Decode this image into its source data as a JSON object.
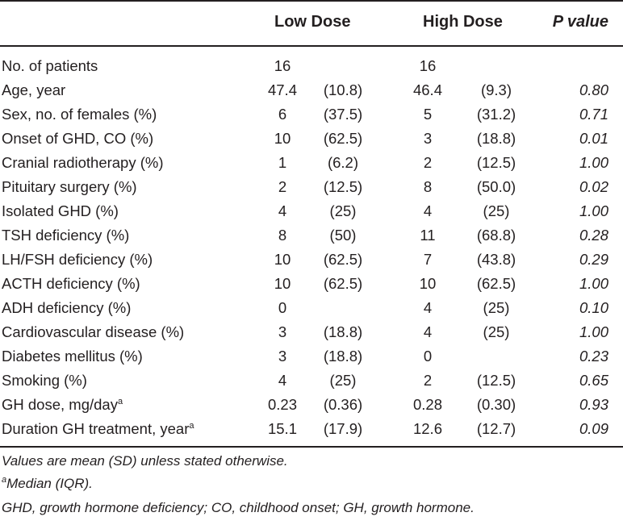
{
  "header": {
    "low_dose": "Low Dose",
    "high_dose": "High Dose",
    "p_value": "P value"
  },
  "rows": [
    {
      "label": "No. of patients",
      "sup": "",
      "low_val": "16",
      "low_sd": "",
      "high_val": "16",
      "high_sd": "",
      "p": ""
    },
    {
      "label": "Age, year",
      "sup": "",
      "low_val": "47.4",
      "low_sd": "(10.8)",
      "high_val": "46.4",
      "high_sd": "(9.3)",
      "p": "0.80"
    },
    {
      "label": "Sex, no. of females (%)",
      "sup": "",
      "low_val": "6",
      "low_sd": "(37.5)",
      "high_val": "5",
      "high_sd": "(31.2)",
      "p": "0.71"
    },
    {
      "label": "Onset of GHD, CO (%)",
      "sup": "",
      "low_val": "10",
      "low_sd": "(62.5)",
      "high_val": "3",
      "high_sd": "(18.8)",
      "p": "0.01"
    },
    {
      "label": "Cranial radiotherapy (%)",
      "sup": "",
      "low_val": "1",
      "low_sd": "(6.2)",
      "high_val": "2",
      "high_sd": "(12.5)",
      "p": "1.00"
    },
    {
      "label": "Pituitary surgery (%)",
      "sup": "",
      "low_val": "2",
      "low_sd": "(12.5)",
      "high_val": "8",
      "high_sd": "(50.0)",
      "p": "0.02"
    },
    {
      "label": "Isolated GHD (%)",
      "sup": "",
      "low_val": "4",
      "low_sd": "(25)",
      "high_val": "4",
      "high_sd": "(25)",
      "p": "1.00"
    },
    {
      "label": "TSH deficiency (%)",
      "sup": "",
      "low_val": "8",
      "low_sd": "(50)",
      "high_val": "11",
      "high_sd": "(68.8)",
      "p": "0.28"
    },
    {
      "label": "LH/FSH deficiency (%)",
      "sup": "",
      "low_val": "10",
      "low_sd": "(62.5)",
      "high_val": "7",
      "high_sd": "(43.8)",
      "p": "0.29"
    },
    {
      "label": "ACTH deficiency (%)",
      "sup": "",
      "low_val": "10",
      "low_sd": "(62.5)",
      "high_val": "10",
      "high_sd": "(62.5)",
      "p": "1.00"
    },
    {
      "label": "ADH deficiency (%)",
      "sup": "",
      "low_val": "0",
      "low_sd": "",
      "high_val": "4",
      "high_sd": "(25)",
      "p": "0.10"
    },
    {
      "label": "Cardiovascular disease (%)",
      "sup": "",
      "low_val": "3",
      "low_sd": "(18.8)",
      "high_val": "4",
      "high_sd": "(25)",
      "p": "1.00"
    },
    {
      "label": "Diabetes mellitus (%)",
      "sup": "",
      "low_val": "3",
      "low_sd": "(18.8)",
      "high_val": "0",
      "high_sd": "",
      "p": "0.23"
    },
    {
      "label": "Smoking (%)",
      "sup": "",
      "low_val": "4",
      "low_sd": "(25)",
      "high_val": "2",
      "high_sd": "(12.5)",
      "p": "0.65"
    },
    {
      "label": "GH dose, mg/day",
      "sup": "a",
      "low_val": "0.23",
      "low_sd": "(0.36)",
      "high_val": "0.28",
      "high_sd": "(0.30)",
      "p": "0.93"
    },
    {
      "label": "Duration GH treatment, year",
      "sup": "a",
      "low_val": "15.1",
      "low_sd": "(17.9)",
      "high_val": "12.6",
      "high_sd": "(12.7)",
      "p": "0.09"
    }
  ],
  "footnotes": {
    "values_note": "Values are mean (SD) unless stated otherwise.",
    "median_sup": "a",
    "median_note": "Median (IQR).",
    "abbreviations": "GHD, growth hormone deficiency; CO, childhood onset; GH, growth hormone."
  }
}
